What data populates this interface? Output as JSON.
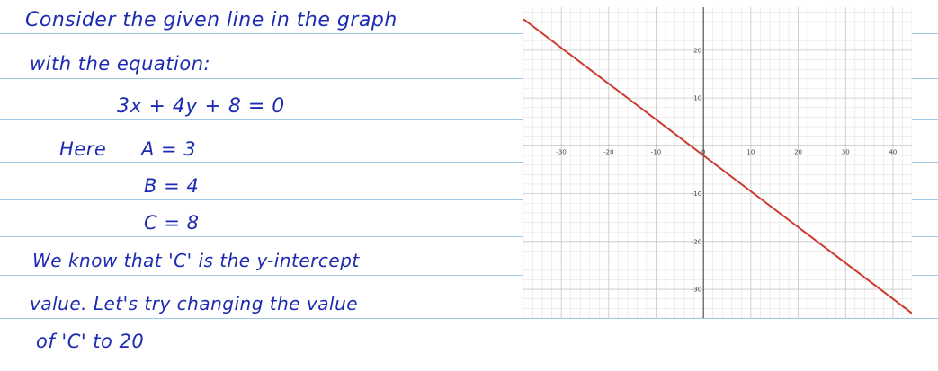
{
  "notes": {
    "line1": "Consider the given line in the graph",
    "line2": "with the equation:",
    "equation": "3x + 4y + 8 = 0",
    "here": "Here",
    "a_value": "A = 3",
    "b_value": "B = 4",
    "c_value": "C = 8",
    "line8": "We know that 'C' is the y-intercept",
    "line9": "value. Let's try changing the value",
    "line10": "of 'C' to 20"
  },
  "colors": {
    "ink": "#1c2bb0",
    "ruled_line": "#9cc9e6",
    "plot_line": "#cc3b2e",
    "grid_minor": "#e3e3e3",
    "grid_major": "#c6c6c6",
    "axis": "#555555"
  },
  "chart_data": {
    "type": "line",
    "title": "",
    "xlabel": "",
    "ylabel": "",
    "xlim": [
      -38,
      44
    ],
    "ylim": [
      -36,
      29
    ],
    "grid": true,
    "x_ticks": [
      "-30",
      "-20",
      "-10",
      "0",
      "10",
      "20",
      "30",
      "40"
    ],
    "y_ticks": [
      "20",
      "10",
      "-10",
      "-20",
      "-30"
    ],
    "series": [
      {
        "name": "",
        "x": [
          -38,
          44
        ],
        "y": [
          26.5,
          -35
        ],
        "color": "#cc3b2e"
      }
    ]
  }
}
